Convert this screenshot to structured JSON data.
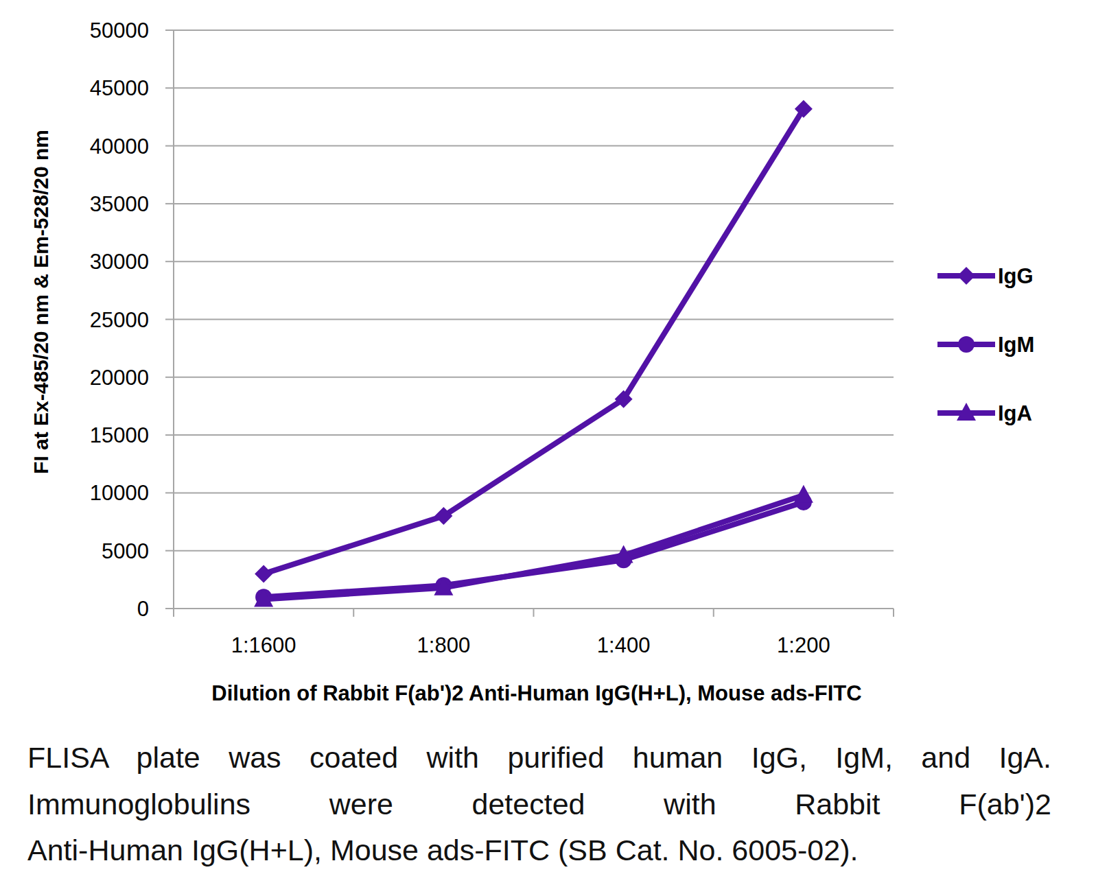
{
  "chart_data": {
    "type": "line",
    "x_label": "Dilution of Rabbit F(ab')2 Anti-Human IgG(H+L), Mouse ads-FITC",
    "y_label": "FI at Ex-485/20 nm & Em-528/20 nm",
    "annotations": [
      "FLISA plate was coated with purified human IgG, IgM, and IgA.",
      "Immunoglobulins were detected with Rabbit F(ab')2",
      "Anti-Human IgG(H+L), Mouse ads-FITC (SB Cat. No. 6005-02)."
    ],
    "categories": [
      "1:1600",
      "1:800",
      "1:400",
      "1:200"
    ],
    "series": [
      {
        "name": "IgG",
        "color": "#5212a6",
        "marker": "diamond",
        "values": [
          3000,
          8000,
          18100,
          43200
        ]
      },
      {
        "name": "IgM",
        "color": "#5212a6",
        "marker": "circle",
        "values": [
          1000,
          2000,
          4200,
          9200
        ]
      },
      {
        "name": "IgA",
        "color": "#5212a6",
        "marker": "triangle",
        "values": [
          800,
          1800,
          4600,
          9800
        ]
      }
    ],
    "ylim": [
      0,
      50000
    ],
    "yticks": [
      0,
      5000,
      10000,
      15000,
      20000,
      25000,
      30000,
      35000,
      40000,
      45000,
      50000
    ],
    "grid": true,
    "legend": "right"
  }
}
